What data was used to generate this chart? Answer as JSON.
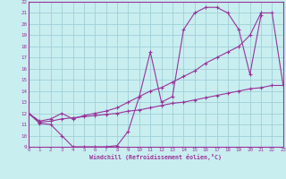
{
  "xlabel": "Windchill (Refroidissement éolien,°C)",
  "xlim": [
    0,
    23
  ],
  "ylim": [
    9,
    22
  ],
  "bg_color": "#c8eef0",
  "grid_color": "#a0d0d8",
  "line_color": "#993399",
  "line1_x": [
    0,
    1,
    2,
    3,
    4,
    5,
    6,
    7,
    8,
    9,
    10,
    11,
    12,
    13,
    14,
    15,
    16,
    17,
    18,
    19,
    20,
    21
  ],
  "line1_y": [
    12,
    11.1,
    11.0,
    10.0,
    9.0,
    9.0,
    9.0,
    9.0,
    9.1,
    10.4,
    13.5,
    17.5,
    13.0,
    13.5,
    19.5,
    21.0,
    21.5,
    21.5,
    21.0,
    19.5,
    15.5,
    20.8
  ],
  "line2_x": [
    0,
    1,
    2,
    3,
    4,
    5,
    6,
    7,
    8,
    9,
    10,
    11,
    12,
    13,
    14,
    15,
    16,
    17,
    18,
    19,
    20,
    21,
    22,
    23
  ],
  "line2_y": [
    12,
    11.3,
    11.5,
    12.0,
    11.5,
    11.8,
    12.0,
    12.2,
    12.5,
    13.0,
    13.5,
    14.0,
    14.3,
    14.8,
    15.3,
    15.8,
    16.5,
    17.0,
    17.5,
    18.0,
    19.0,
    21.0,
    21.0,
    14.5
  ],
  "line3_x": [
    0,
    1,
    2,
    3,
    4,
    5,
    6,
    7,
    8,
    9,
    10,
    11,
    12,
    13,
    14,
    15,
    16,
    17,
    18,
    19,
    20,
    21,
    22,
    23
  ],
  "line3_y": [
    12,
    11.2,
    11.3,
    11.5,
    11.6,
    11.7,
    11.8,
    11.9,
    12.0,
    12.2,
    12.3,
    12.5,
    12.7,
    12.9,
    13.0,
    13.2,
    13.4,
    13.6,
    13.8,
    14.0,
    14.2,
    14.3,
    14.5,
    14.5
  ]
}
